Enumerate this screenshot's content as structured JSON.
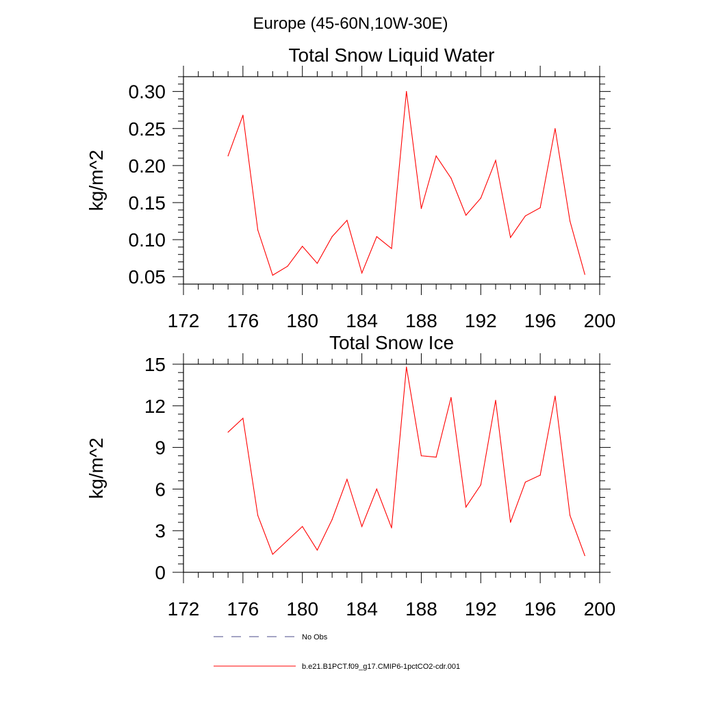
{
  "page": {
    "suptitle": "Europe (45-60N,10W-30E)"
  },
  "colors": {
    "series_line": "#ff0000",
    "obs_line": "#4a4a8a",
    "axis": "#000000"
  },
  "chart_data": [
    {
      "type": "line",
      "title": "Total Snow Liquid Water",
      "xlabel": "",
      "ylabel": "kg/m^2",
      "xlim": [
        172,
        200
      ],
      "ylim": [
        0.04,
        0.32
      ],
      "xticks": [
        172,
        176,
        180,
        184,
        188,
        192,
        196,
        200
      ],
      "xtick_labels": [
        "172",
        "176",
        "180",
        "184",
        "188",
        "192",
        "196",
        "200"
      ],
      "yticks": [
        0.05,
        0.1,
        0.15,
        0.2,
        0.25,
        0.3
      ],
      "ytick_labels": [
        "0.05",
        "0.10",
        "0.15",
        "0.20",
        "0.25",
        "0.30"
      ],
      "grid": false,
      "x": [
        175,
        176,
        177,
        178,
        179,
        180,
        181,
        182,
        183,
        184,
        185,
        186,
        187,
        188,
        189,
        190,
        191,
        192,
        193,
        194,
        195,
        196,
        197,
        198,
        199
      ],
      "series": [
        {
          "name": "b.e21.B1PCT.f09_g17.CMIP6-1pctCO2-cdr.001",
          "values": [
            0.213,
            0.268,
            0.113,
            0.052,
            0.064,
            0.091,
            0.068,
            0.104,
            0.126,
            0.055,
            0.104,
            0.088,
            0.3,
            0.142,
            0.213,
            0.183,
            0.133,
            0.156,
            0.207,
            0.103,
            0.132,
            0.143,
            0.25,
            0.125,
            0.053
          ]
        }
      ]
    },
    {
      "type": "line",
      "title": "Total Snow Ice",
      "xlabel": "",
      "ylabel": "kg/m^2",
      "xlim": [
        172,
        200
      ],
      "ylim": [
        0,
        15
      ],
      "xticks": [
        172,
        176,
        180,
        184,
        188,
        192,
        196,
        200
      ],
      "xtick_labels": [
        "172",
        "176",
        "180",
        "184",
        "188",
        "192",
        "196",
        "200"
      ],
      "yticks": [
        0,
        3,
        6,
        9,
        12,
        15
      ],
      "ytick_labels": [
        "0",
        "3",
        "6",
        "9",
        "12",
        "15"
      ],
      "grid": false,
      "x": [
        175,
        176,
        177,
        178,
        179,
        180,
        181,
        182,
        183,
        184,
        185,
        186,
        187,
        188,
        189,
        190,
        191,
        192,
        193,
        194,
        195,
        196,
        197,
        198,
        199
      ],
      "series": [
        {
          "name": "b.e21.B1PCT.f09_g17.CMIP6-1pctCO2-cdr.001",
          "values": [
            10.1,
            11.1,
            4.1,
            1.3,
            2.3,
            3.3,
            1.6,
            3.8,
            6.7,
            3.3,
            6.0,
            3.2,
            14.8,
            8.4,
            8.3,
            12.6,
            4.7,
            6.3,
            12.4,
            3.6,
            6.5,
            7.0,
            12.7,
            4.1,
            1.2
          ]
        }
      ]
    }
  ],
  "legend": {
    "placement": "bottom-center",
    "entries": [
      {
        "label": "No Obs",
        "style": "dashed"
      },
      {
        "label": "b.e21.B1PCT.f09_g17.CMIP6-1pctCO2-cdr.001",
        "style": "solid"
      }
    ]
  }
}
